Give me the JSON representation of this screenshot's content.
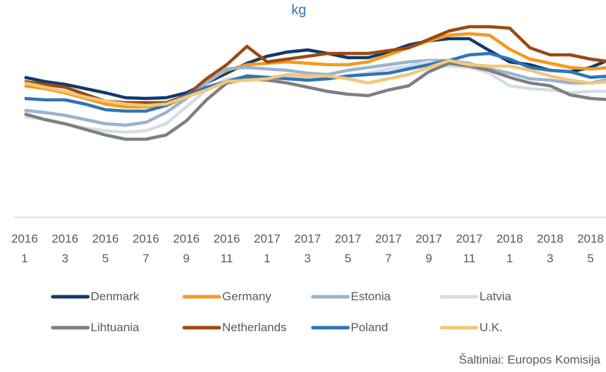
{
  "chart_data": {
    "type": "line",
    "title": "kg",
    "categories": [
      "2016 1",
      null,
      "2016 3",
      null,
      "2016 5",
      null,
      "2016 7",
      null,
      "2016 9",
      null,
      "2016 11",
      null,
      "2017 1",
      null,
      "2017 3",
      null,
      "2017 5",
      null,
      "2017 7",
      null,
      "2017 9",
      null,
      "2017 11",
      null,
      "2018 1",
      null,
      "2018 3",
      null,
      "2018 5",
      null
    ],
    "ylim": [
      0,
      300
    ],
    "series": [
      {
        "name": "Denmark",
        "color": "#0f3a6e",
        "values": [
          199,
          193,
          189,
          183,
          177,
          170,
          169,
          170,
          177,
          191,
          205,
          219,
          229,
          235,
          238,
          233,
          227,
          227,
          235,
          245,
          251,
          254,
          254,
          237,
          221,
          217,
          209,
          207,
          213,
          225
        ]
      },
      {
        "name": "Germany",
        "color": "#f39a1b",
        "values": [
          187,
          183,
          177,
          169,
          161,
          157,
          157,
          159,
          171,
          193,
          209,
          217,
          219,
          221,
          219,
          217,
          217,
          221,
          231,
          241,
          251,
          259,
          261,
          259,
          239,
          225,
          219,
          213,
          211,
          213
        ]
      },
      {
        "name": "Estonia",
        "color": "#9ab3cf",
        "values": [
          152,
          149,
          145,
          139,
          133,
          131,
          135,
          149,
          169,
          191,
          211,
          213,
          211,
          209,
          205,
          203,
          209,
          213,
          217,
          221,
          223,
          223,
          219,
          211,
          205,
          197,
          195,
          191,
          191,
          197
        ]
      },
      {
        "name": "Latvia",
        "color": "#d6dde2",
        "values": [
          143,
          139,
          133,
          127,
          123,
          121,
          123,
          133,
          157,
          181,
          197,
          199,
          199,
          201,
          197,
          197,
          201,
          205,
          211,
          215,
          221,
          215,
          213,
          205,
          187,
          183,
          181,
          177,
          179,
          179
        ]
      },
      {
        "name": "Lihtuania",
        "color": "#7f7f7f",
        "values": [
          147,
          139,
          133,
          125,
          117,
          111,
          111,
          117,
          137,
          167,
          191,
          197,
          195,
          191,
          185,
          179,
          175,
          173,
          181,
          187,
          207,
          219,
          215,
          209,
          199,
          191,
          187,
          174,
          169,
          167
        ]
      },
      {
        "name": "Netherlands",
        "color": "#9b4a10",
        "values": [
          193,
          189,
          185,
          175,
          165,
          163,
          163,
          163,
          173,
          197,
          217,
          243,
          221,
          225,
          229,
          233,
          233,
          233,
          237,
          241,
          253,
          265,
          271,
          271,
          269,
          241,
          231,
          231,
          225,
          221
        ]
      },
      {
        "name": "Poland",
        "color": "#2e75b6",
        "values": [
          169,
          167,
          167,
          161,
          153,
          151,
          151,
          159,
          173,
          185,
          193,
          201,
          199,
          197,
          195,
          197,
          201,
          203,
          205,
          211,
          217,
          223,
          231,
          233,
          225,
          213,
          209,
          207,
          199,
          201
        ]
      },
      {
        "name": "U.K.",
        "color": "#f2c77a",
        "values": [
          191,
          185,
          179,
          171,
          165,
          161,
          159,
          161,
          171,
          181,
          193,
          195,
          197,
          203,
          201,
          201,
          197,
          191,
          197,
          203,
          213,
          223,
          217,
          215,
          215,
          209,
          201,
          195,
          191,
          193
        ]
      }
    ],
    "source": "Šaltiniai: Europos Komisija"
  }
}
